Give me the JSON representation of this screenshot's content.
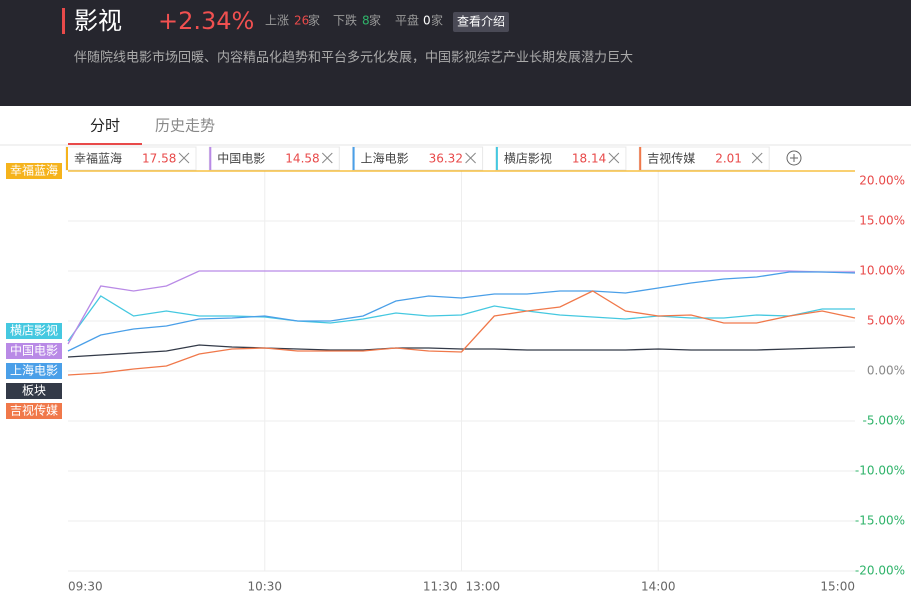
{
  "header": {
    "title": "影视",
    "change": "+2.34%",
    "up_label": "上涨",
    "up_count": 26,
    "down_label": "下跌",
    "down_count": 8,
    "flat_label": "平盘",
    "flat_count": 0,
    "count_unit": "家",
    "button": "查看介绍",
    "description": "伴随院线电影市场回暖、内容精品化趋势和平台多元化发展，中国影视综艺产业长期发展潜力巨大"
  },
  "tabs": [
    "分时",
    "历史走势"
  ],
  "chips": [
    {
      "name": "幸福蓝海",
      "price": 17.58,
      "color": "#f5b31c"
    },
    {
      "name": "中国电影",
      "price": 14.58,
      "color": "#b98ae6"
    },
    {
      "name": "上海电影",
      "price": 36.32,
      "color": "#4a9fe8"
    },
    {
      "name": "横店影视",
      "price": 18.14,
      "color": "#45c8e0"
    },
    {
      "name": "吉视传媒",
      "price": 2.01,
      "color": "#f0784a"
    }
  ],
  "chart_data": {
    "type": "line",
    "x": [
      "09:30",
      "09:40",
      "09:50",
      "10:00",
      "10:10",
      "10:20",
      "10:30",
      "10:40",
      "10:50",
      "11:00",
      "11:10",
      "11:20",
      "11:30",
      "13:10",
      "13:20",
      "13:30",
      "13:40",
      "13:50",
      "14:00",
      "14:10",
      "14:20",
      "14:30",
      "14:40",
      "14:50",
      "15:00"
    ],
    "series": [
      {
        "name": "幸福蓝海",
        "color": "#f5b31c",
        "values": [
          20,
          20,
          20,
          20,
          20,
          20,
          20,
          20,
          20,
          20,
          20,
          20,
          20,
          20,
          20,
          20,
          20,
          20,
          20,
          20,
          20,
          20,
          20,
          20,
          20
        ]
      },
      {
        "name": "横店影视",
        "color": "#45c8e0",
        "values": [
          3,
          7.5,
          5.5,
          6,
          5.5,
          5.5,
          5.4,
          5,
          4.8,
          5.2,
          5.8,
          5.5,
          5.6,
          6.5,
          6,
          5.6,
          5.4,
          5.2,
          5.5,
          5.3,
          5.3,
          5.6,
          5.5,
          6.2,
          6.2
        ]
      },
      {
        "name": "中国电影",
        "color": "#b98ae6",
        "values": [
          2.7,
          8.5,
          8,
          8.5,
          10,
          10,
          10,
          10,
          10,
          10,
          10,
          10,
          10,
          10,
          10,
          10,
          10,
          10,
          10,
          10,
          10,
          10,
          10,
          9.9,
          9.9
        ]
      },
      {
        "name": "上海电影",
        "color": "#4a9fe8",
        "values": [
          2,
          3.6,
          4.2,
          4.5,
          5.2,
          5.3,
          5.5,
          5,
          5,
          5.5,
          7,
          7.5,
          7.3,
          7.7,
          7.7,
          8,
          8,
          7.8,
          8.3,
          8.8,
          9.2,
          9.4,
          9.9,
          9.9,
          9.8
        ]
      },
      {
        "name": "板块",
        "color": "#333a48",
        "values": [
          1.4,
          1.6,
          1.8,
          2,
          2.6,
          2.4,
          2.3,
          2.2,
          2.1,
          2.1,
          2.3,
          2.3,
          2.2,
          2.2,
          2.1,
          2.1,
          2.1,
          2.1,
          2.2,
          2.1,
          2.1,
          2.1,
          2.2,
          2.3,
          2.4
        ]
      },
      {
        "name": "吉视传媒",
        "color": "#f0784a",
        "values": [
          -0.4,
          -0.2,
          0.2,
          0.5,
          1.7,
          2.2,
          2.3,
          2,
          2,
          2,
          2.3,
          2,
          1.9,
          5.5,
          6,
          6.4,
          8,
          6,
          5.5,
          5.6,
          4.8,
          4.8,
          5.5,
          6,
          5.3
        ]
      }
    ],
    "ylim": [
      -20,
      20
    ],
    "yticks": [
      {
        "value": -20,
        "label": "-20.00%"
      },
      {
        "value": -15,
        "label": "-15.00%"
      },
      {
        "value": -10,
        "label": "-10.00%"
      },
      {
        "value": -5,
        "label": "-5.00%"
      },
      {
        "value": 0,
        "label": "0.00%"
      },
      {
        "value": 5,
        "label": "5.00%"
      },
      {
        "value": 10,
        "label": "10.00%"
      },
      {
        "value": 15,
        "label": "15.00%"
      },
      {
        "value": 20,
        "label": "20.00%"
      }
    ],
    "xticks": [
      "09:30",
      "10:30",
      "11:30",
      "13:00",
      "14:00",
      "15:00"
    ],
    "grid": true
  }
}
